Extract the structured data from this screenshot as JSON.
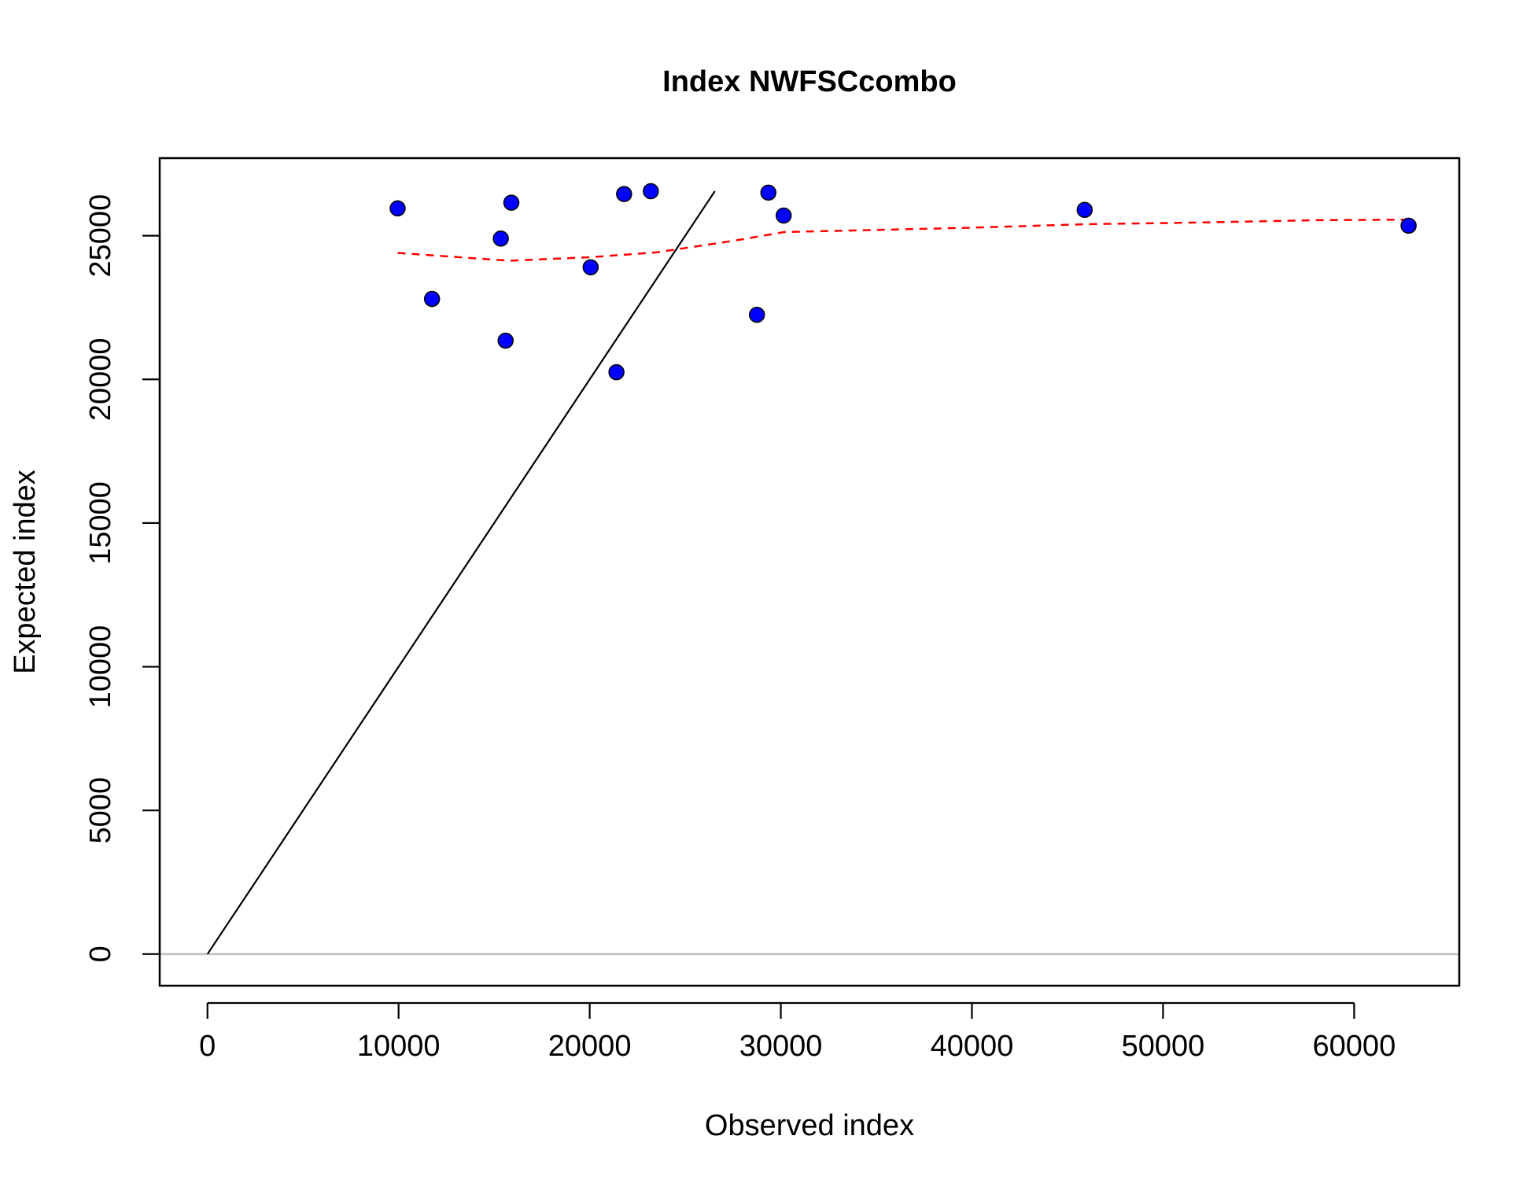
{
  "chart_data": {
    "type": "scatter",
    "title": "Index NWFSCcombo",
    "xlabel": "Observed index",
    "ylabel": "Expected index",
    "xlim": [
      -2500,
      65500
    ],
    "ylim": [
      -1100,
      27700
    ],
    "x_ticks": [
      0,
      10000,
      20000,
      30000,
      40000,
      50000,
      60000
    ],
    "x_tick_labels": [
      "0",
      "10000",
      "20000",
      "30000",
      "40000",
      "50000",
      "60000"
    ],
    "y_ticks": [
      0,
      5000,
      10000,
      15000,
      20000,
      25000
    ],
    "y_tick_labels": [
      "0",
      "5000",
      "10000",
      "15000",
      "20000",
      "25000"
    ],
    "grid": false,
    "points": {
      "color": "#0000ff",
      "edge_color": "#000000",
      "x": [
        9950,
        11750,
        15350,
        15600,
        15900,
        20050,
        21400,
        21800,
        23200,
        28750,
        29350,
        30150,
        45900,
        62850
      ],
      "y": [
        25950,
        22800,
        24900,
        21350,
        26150,
        23900,
        20250,
        26450,
        26550,
        22250,
        26500,
        25700,
        25900,
        25350
      ]
    },
    "smoother": {
      "color": "#ff0000",
      "style": "dashed",
      "x": [
        9950,
        15800,
        20000,
        23500,
        27500,
        30200,
        35000,
        40000,
        46000,
        52000,
        58000,
        62850
      ],
      "y": [
        24400,
        24130,
        24250,
        24420,
        24820,
        25130,
        25200,
        25280,
        25400,
        25460,
        25540,
        25560
      ]
    },
    "identity_line": {
      "color": "#000000",
      "x": [
        0,
        26550
      ],
      "y": [
        0,
        26550
      ]
    },
    "zero_line": {
      "color": "#bebebe",
      "y": 0
    }
  }
}
